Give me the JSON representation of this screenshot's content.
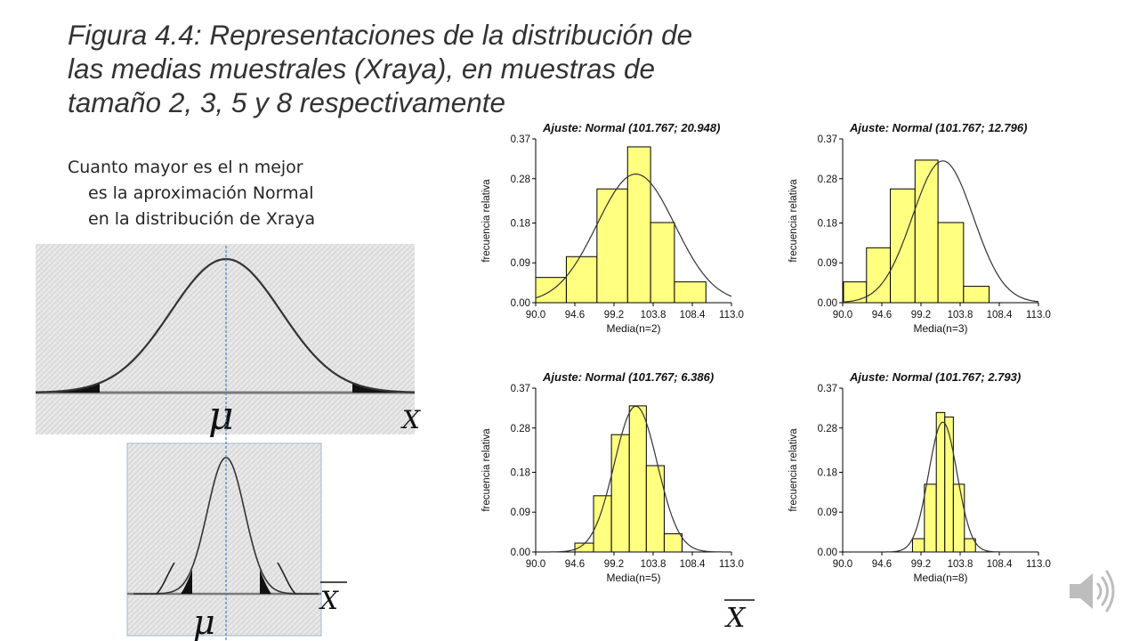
{
  "slide": {
    "title_lines": [
      "Figura 4.4: Representaciones de la distribución de",
      "las medias muestrales (Xraya), en muestras de",
      "tamaño 2, 3, 5 y 8 respectivamente"
    ],
    "caption_lines": [
      "Cuanto mayor es el n mejor",
      "es la aproximación Normal",
      "en la distribución de Xraya"
    ]
  },
  "symbols": {
    "mu": "μ",
    "x": "X"
  },
  "colors": {
    "bar_fill": "#FFFF80",
    "bar_stroke": "#000000",
    "curve": "#333333",
    "center_line": "#4A7FC1",
    "tail_fill": "#111111"
  },
  "icons": {
    "audio": "speaker-icon"
  },
  "chart_data": [
    {
      "type": "bar",
      "title": "Ajuste: Normal (101.767; 20.948)",
      "xlabel": "Media(n=2)",
      "ylabel": "frecuencia relativa",
      "xticks": [
        "90.0",
        "94.6",
        "99.2",
        "103.8",
        "108.4",
        "113.0"
      ],
      "yticks": [
        "0.00",
        "0.09",
        "0.18",
        "0.28",
        "0.37"
      ],
      "xlim": [
        90.0,
        113.0
      ],
      "ylim": [
        0.0,
        0.37
      ],
      "bin_edges": [
        90.0,
        93.6,
        97.2,
        100.8,
        103.5,
        106.3,
        110.0
      ],
      "values": [
        0.057,
        0.104,
        0.257,
        0.352,
        0.181,
        0.047
      ],
      "fit": {
        "distribution": "Normal",
        "mean": 101.767,
        "variance": 20.948
      }
    },
    {
      "type": "bar",
      "title": "Ajuste: Normal (101.767; 12.796)",
      "xlabel": "Media(n=3)",
      "ylabel": "frecuencia relativa",
      "xticks": [
        "90.0",
        "94.6",
        "99.2",
        "103.8",
        "108.4",
        "113.0"
      ],
      "yticks": [
        "0.00",
        "0.09",
        "0.18",
        "0.28",
        "0.37"
      ],
      "xlim": [
        90.0,
        113.0
      ],
      "ylim": [
        0.0,
        0.37
      ],
      "bin_edges": [
        90.1,
        92.8,
        95.6,
        98.5,
        101.2,
        104.2,
        107.2,
        110.2
      ],
      "values": [
        0.047,
        0.124,
        0.257,
        0.322,
        0.181,
        0.037,
        0.0
      ],
      "fit": {
        "distribution": "Normal",
        "mean": 101.767,
        "variance": 12.796
      }
    },
    {
      "type": "bar",
      "title": "Ajuste: Normal (101.767; 6.386)",
      "xlabel": "Media(n=5)",
      "ylabel": "frecuencia relativa",
      "xticks": [
        "90.0",
        "94.6",
        "99.2",
        "103.8",
        "108.4",
        "113.0"
      ],
      "yticks": [
        "0.00",
        "0.09",
        "0.18",
        "0.28",
        "0.37"
      ],
      "xlim": [
        90.0,
        113.0
      ],
      "ylim": [
        0.0,
        0.37
      ],
      "bin_edges": [
        94.6,
        96.8,
        98.9,
        101.0,
        103.0,
        105.1,
        107.2,
        109.2
      ],
      "values": [
        0.02,
        0.127,
        0.265,
        0.33,
        0.195,
        0.041,
        0.0
      ],
      "fit": {
        "distribution": "Normal",
        "mean": 101.767,
        "variance": 6.386
      }
    },
    {
      "type": "bar",
      "title": "Ajuste: Normal (101.767; 2.793)",
      "xlabel": "Media(n=8)",
      "ylabel": "frecuencia relativa",
      "xticks": [
        "90.0",
        "94.6",
        "99.2",
        "103.8",
        "108.4",
        "113.0"
      ],
      "yticks": [
        "0.00",
        "0.09",
        "0.18",
        "0.28",
        "0.37"
      ],
      "xlim": [
        90.0,
        113.0
      ],
      "ylim": [
        0.0,
        0.37
      ],
      "bin_edges": [
        98.2,
        99.6,
        101.0,
        102.0,
        103.0,
        104.3,
        105.6,
        106.8
      ],
      "values": [
        0.03,
        0.153,
        0.315,
        0.305,
        0.153,
        0.03,
        0.0
      ],
      "fit": {
        "distribution": "Normal",
        "mean": 101.767,
        "variance": 2.793
      }
    }
  ]
}
